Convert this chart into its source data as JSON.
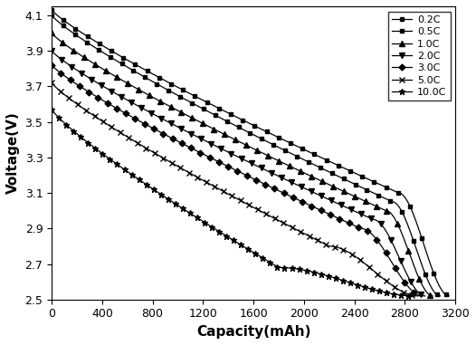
{
  "xlabel": "Capacity(mAh)",
  "ylabel": "Voltage(V)",
  "xlim": [
    0,
    3200
  ],
  "ylim": [
    2.5,
    4.15
  ],
  "xticks": [
    0,
    400,
    800,
    1200,
    1600,
    2000,
    2400,
    2800,
    3200
  ],
  "yticks": [
    2.5,
    2.7,
    2.9,
    3.1,
    3.3,
    3.5,
    3.7,
    3.9,
    4.1
  ],
  "background_color": "#ffffff",
  "curves": [
    {
      "label": "0.2C",
      "marker": "s",
      "markersize": 3.5,
      "markevery": 18,
      "v0": 4.13,
      "v_mid": 3.3,
      "v_knee": 3.1,
      "cap_knee": 2750,
      "cap_end": 3150,
      "v_end": 2.52
    },
    {
      "label": "0.5C",
      "marker": "s",
      "markersize": 3.5,
      "markevery": 18,
      "v0": 4.1,
      "v_mid": 3.28,
      "v_knee": 3.05,
      "cap_knee": 2700,
      "cap_end": 3080,
      "v_end": 2.52
    },
    {
      "label": "1.0C",
      "marker": "^",
      "markersize": 4.0,
      "markevery": 17,
      "v0": 4.0,
      "v_mid": 3.26,
      "v_knee": 3.0,
      "cap_knee": 2650,
      "cap_end": 3020,
      "v_end": 2.52
    },
    {
      "label": "2.0C",
      "marker": "v",
      "markersize": 4.0,
      "markevery": 16,
      "v0": 3.9,
      "v_mid": 3.2,
      "v_knee": 2.95,
      "cap_knee": 2550,
      "cap_end": 2960,
      "v_end": 2.52
    },
    {
      "label": "3.0C",
      "marker": "D",
      "markersize": 3.5,
      "markevery": 15,
      "v0": 3.82,
      "v_mid": 3.15,
      "v_knee": 2.9,
      "cap_knee": 2450,
      "cap_end": 2940,
      "v_end": 2.52
    },
    {
      "label": "5.0C",
      "marker": "x",
      "markersize": 4.0,
      "markevery": 14,
      "v0": 3.72,
      "v_mid": 3.05,
      "v_knee": 2.8,
      "cap_knee": 2200,
      "cap_end": 2910,
      "v_end": 2.52
    },
    {
      "label": "10.0C",
      "marker": "*",
      "markersize": 5.0,
      "markevery": 12,
      "v0": 3.57,
      "v_mid": 2.9,
      "v_knee": 2.68,
      "cap_knee": 1800,
      "cap_end": 2880,
      "v_end": 2.52
    }
  ]
}
